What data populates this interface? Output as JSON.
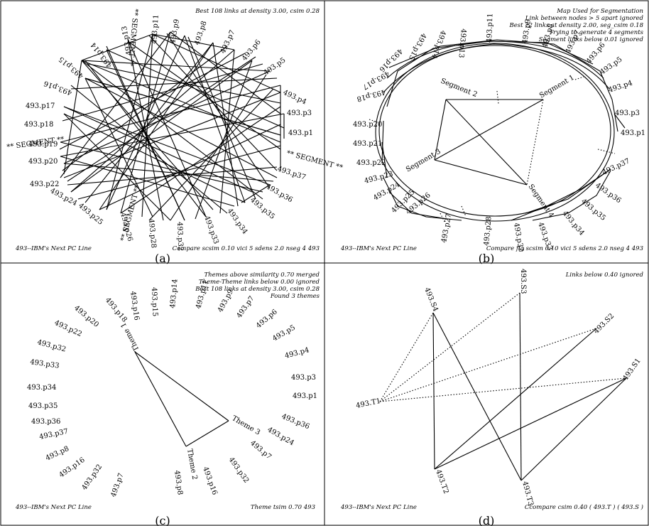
{
  "panels": {
    "a": {
      "tag": "(a)",
      "title": "Best 108 links at density 3.00, csim 0.28",
      "footer_left": "493--IBM's Next PC Line",
      "footer_right": "Compare scsim 0.10 vici 5 sdens 2.0 nseg 4 493",
      "nodes": [
        "493.p1",
        "493.p3",
        "493.p4",
        "493.p5",
        "493.p6",
        "493.p7",
        "493.p8",
        "493.p9",
        "493.p11",
        "493.p13",
        "493.p14",
        "493.p15",
        "493.p16",
        "493.p17",
        "493.p18",
        "493.p19",
        "493.p20",
        "493.p22",
        "493.p24",
        "493.p25",
        "493.p26",
        "493.p28",
        "493.p32",
        "493.p33",
        "493.p34",
        "493.p35",
        "493.p36",
        "493.p37"
      ],
      "segment_label": "** SEGMENT **"
    },
    "b": {
      "tag": "(b)",
      "title_lines": [
        "Map Used for Segmentation",
        "Link between nodes > 5 apart ignored",
        "Best 72 links at density 2.00, seg_csim 0.18",
        "Trying to generate 4 segments",
        "Segment links below 0.01 ignored"
      ],
      "footer_left": "493--IBM's Next PC Line",
      "footer_right": "Compare fig scsim 0.10 vici 5 sdens 2.0 nseg 4 493",
      "nodes": [
        "493.p1",
        "493.p3",
        "493.p4",
        "493.p5",
        "493.p6",
        "493.p7",
        "493.p8",
        "493.p9",
        "493.p11",
        "493.p13",
        "493.p14",
        "493.p15",
        "493.p16",
        "493.p17",
        "493.p18",
        "493.p20",
        "493.p21",
        "493.p22",
        "493.p23",
        "493.p24",
        "493.p25",
        "493.p26",
        "493.p27",
        "493.p28",
        "493.p32",
        "493.p33",
        "493.p34",
        "493.p35",
        "493.p36",
        "493.p37"
      ],
      "segments": [
        "Segment 1",
        "Segment 2",
        "Segment 3",
        "Segment 4"
      ]
    },
    "c": {
      "tag": "(c)",
      "title_lines": [
        "Themes above similarity 0.70 merged",
        "Theme-Theme links below 0.00 ignored",
        "Best 108 links at density 3.00, csim 0.28",
        "Found 3 themes"
      ],
      "footer_left": "493--IBM's Next PC Line",
      "footer_right": "Theme tsim 0.70 493",
      "nodes": [
        "493.p1",
        "493.p3",
        "493.p4",
        "493.p5",
        "493.p6",
        "493.p7",
        "493.p9",
        "493.p11",
        "493.p14",
        "493.p15",
        "493.p16",
        "493.p18",
        "493.p20",
        "493.p22",
        "493.p24",
        "493.p25",
        "493.p26",
        "493.p28",
        "493.p32",
        "493.p33",
        "493.p34",
        "493.p35",
        "493.p36",
        "493.p37",
        "493.p8",
        "493.p16",
        "493.p32",
        "493.p7",
        "493.p24",
        "493.p36"
      ],
      "themes": [
        "Theme 1",
        "Theme 2",
        "Theme 3"
      ]
    },
    "d": {
      "tag": "(d)",
      "title": "Links below 0.40 ignored",
      "footer_left": "493--IBM's Next PC Line",
      "footer_right": "Ccompare csim 0.40 ( 493.T ) ( 493.S )",
      "nodes": [
        "493.S4",
        "493.S3",
        "493.S2",
        "493.S1",
        "493.T1",
        "493.T2",
        "493.T3"
      ]
    }
  }
}
